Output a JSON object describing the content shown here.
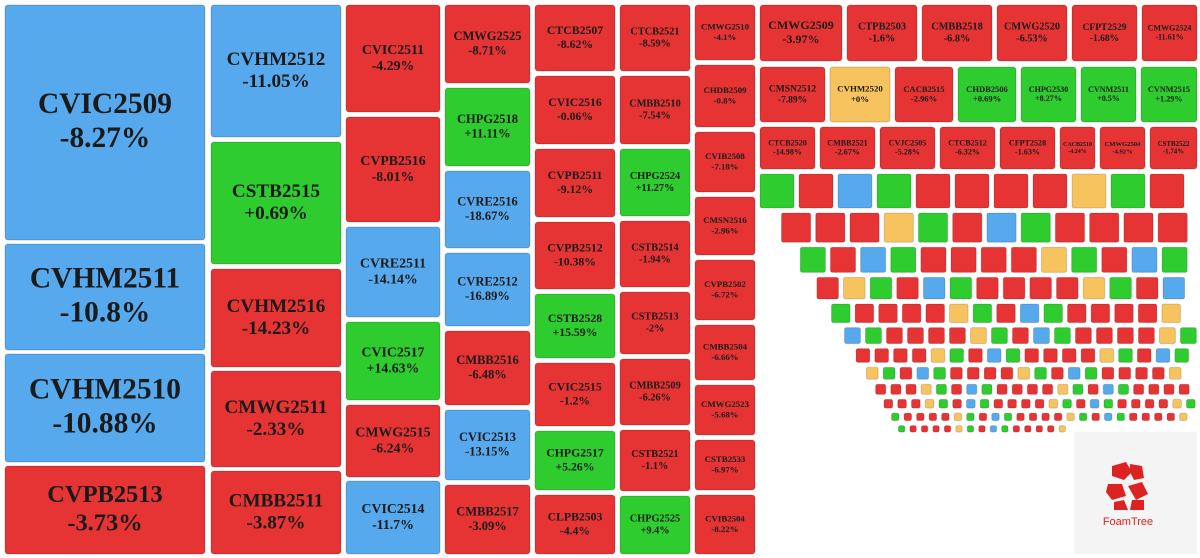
{
  "chart_data": {
    "type": "treemap",
    "categories": [
      "CVIC2509",
      "CVHM2511",
      "CVHM2510",
      "CVPB2513",
      "CVHM2512",
      "CSTB2515",
      "CVHM2516",
      "CMWG2511",
      "CMBB2511",
      "CVIC2511",
      "CVPB2516",
      "CVRE2511",
      "CVIC2517",
      "CMWG2515",
      "CVIC2514",
      "CMWG2525",
      "CHPG2518",
      "CVRE2516",
      "CVRE2512",
      "CMBB2516",
      "CVIC2513",
      "CMBB2517",
      "CTCB2507",
      "CVIC2516",
      "CVPB2511",
      "CVPB2512",
      "CSTB2528",
      "CVIC2515",
      "CHPG2517",
      "CLPB2503",
      "CTCB2521",
      "CMBB2510",
      "CHPG2524",
      "CSTB2514",
      "CSTB2513",
      "CMBB2509",
      "CSTB2521",
      "CHPG2525",
      "CMWG2510",
      "CHDB2509",
      "CVIB2508",
      "CMSN2516",
      "CVPB2502",
      "CMBB2504",
      "CMWG2523",
      "CSTB2533",
      "CVIB2504",
      "CMWG2509",
      "CTPB2503",
      "CMBB2518",
      "CMWG2520",
      "CFPT2529",
      "CMWG2524",
      "CMSN2512",
      "CVHM2520",
      "CACB2515",
      "CHDB2506",
      "CHPG2530",
      "CVNM2511",
      "CVNM2515",
      "CTCB2520",
      "CMBB2521",
      "CVJC2505",
      "CTCB2512",
      "CFPT2528",
      "CACB2510",
      "CMWG2504",
      "CSTB2522"
    ],
    "values": [
      -8.27,
      -10.8,
      -10.88,
      -3.73,
      -11.05,
      0.69,
      -14.23,
      -2.33,
      -3.87,
      -4.29,
      -8.01,
      -14.14,
      14.63,
      -6.24,
      -11.7,
      -8.71,
      11.11,
      -18.67,
      -16.89,
      -6.48,
      -13.15,
      -3.09,
      -8.62,
      -0.06,
      -9.12,
      -10.38,
      15.59,
      -1.2,
      5.26,
      -4.4,
      -8.59,
      -7.54,
      11.27,
      -1.94,
      -2,
      -6.26,
      -1.1,
      9.4,
      -4.1,
      -0.8,
      -7.18,
      -2.96,
      -6.72,
      -6.66,
      -5.68,
      -6.97,
      -8.22,
      -3.97,
      -1.6,
      -6.8,
      -6.53,
      -1.68,
      -11.61,
      -7.89,
      0,
      -2.96,
      0.69,
      8.27,
      0.5,
      1.29,
      -14.98,
      -2.67,
      -5.28,
      -6.32,
      -1.63,
      -4.24,
      -4.92,
      -1.74
    ],
    "value_labels": [
      "-8.27%",
      "-10.8%",
      "-10.88%",
      "-3.73%",
      "-11.05%",
      "+0.69%",
      "-14.23%",
      "-2.33%",
      "-3.87%",
      "-4.29%",
      "-8.01%",
      "-14.14%",
      "+14.63%",
      "-6.24%",
      "-11.7%",
      "-8.71%",
      "+11.11%",
      "-18.67%",
      "-16.89%",
      "-6.48%",
      "-13.15%",
      "-3.09%",
      "-8.62%",
      "-0.06%",
      "-9.12%",
      "-10.38%",
      "+15.59%",
      "-1.2%",
      "+5.26%",
      "-4.4%",
      "-8.59%",
      "-7.54%",
      "+11.27%",
      "-1.94%",
      "-2%",
      "-6.26%",
      "-1.1%",
      "+9.4%",
      "-4.1%",
      "-0.8%",
      "-7.18%",
      "-2.96%",
      "-6.72%",
      "-6.66%",
      "-5.68%",
      "-6.97%",
      "-8.22%",
      "-3.97%",
      "-1.6%",
      "-6.8%",
      "-6.53%",
      "-1.68%",
      "-11.61%",
      "-7.89%",
      "+0%",
      "-2.96%",
      "+0.69%",
      "+8.27%",
      "+0.5%",
      "+1.29%",
      "-14.98%",
      "-2.67%",
      "-5.28%",
      "-6.32%",
      "-1.63%",
      "-4.24%",
      "-4.92%",
      "-1.74%"
    ],
    "colors": [
      "#56a9ec",
      "#56a9ec",
      "#56a9ec",
      "#e63434",
      "#56a9ec",
      "#2ecc2e",
      "#e63434",
      "#e63434",
      "#e63434",
      "#e63434",
      "#e63434",
      "#56a9ec",
      "#2ecc2e",
      "#e63434",
      "#56a9ec",
      "#e63434",
      "#2ecc2e",
      "#56a9ec",
      "#56a9ec",
      "#e63434",
      "#56a9ec",
      "#e63434",
      "#e63434",
      "#e63434",
      "#e63434",
      "#e63434",
      "#2ecc2e",
      "#e63434",
      "#2ecc2e",
      "#e63434",
      "#e63434",
      "#e63434",
      "#2ecc2e",
      "#e63434",
      "#e63434",
      "#e63434",
      "#e63434",
      "#2ecc2e",
      "#e63434",
      "#e63434",
      "#e63434",
      "#e63434",
      "#e63434",
      "#e63434",
      "#e63434",
      "#e63434",
      "#e63434",
      "#e63434",
      "#e63434",
      "#e63434",
      "#e63434",
      "#e63434",
      "#e63434",
      "#e63434",
      "#f7c35e",
      "#e63434",
      "#2ecc2e",
      "#2ecc2e",
      "#2ecc2e",
      "#2ecc2e",
      "#e63434",
      "#e63434",
      "#e63434",
      "#e63434",
      "#e63434",
      "#e63434",
      "#e63434",
      "#e63434"
    ],
    "logo": "FoamTree"
  }
}
